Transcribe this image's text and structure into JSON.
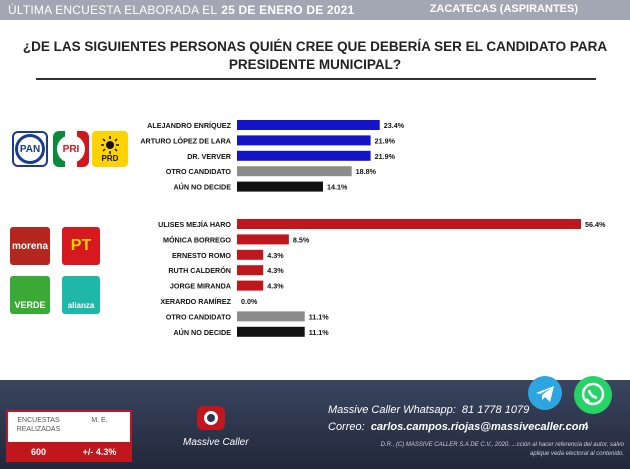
{
  "header": {
    "left_text": "ÚLTIMA ENCUESTA ELABORADA EL",
    "date": "25 DE ENERO DE 2021",
    "right_text": "ZACATECAS (ASPIRANTES)"
  },
  "question": "¿DE LAS SIGUIENTES PERSONAS QUIÉN CREE QUE DEBERÍA SER EL CANDIDATO PARA PRESIDENTE MUNICIPAL?",
  "logos": {
    "pan": "PAN",
    "pri": "PRI",
    "prd": "PRD",
    "morena": "morena",
    "pt": "PT",
    "verde": "VERDE",
    "alianza": "alianza"
  },
  "colors": {
    "blue": "#1414c8",
    "gray": "#8c8c8c",
    "black": "#111111",
    "red": "#c0171e"
  },
  "chart_data": {
    "type": "bar",
    "orientation": "horizontal",
    "groups": [
      {
        "categories": [
          "ALEJANDRO ENRÍQUEZ",
          "ARTURO LÓPEZ DE LARA",
          "DR. VERVER",
          "OTRO CANDIDATO",
          "AÚN NO DECIDE"
        ],
        "values": [
          23.4,
          21.9,
          21.9,
          18.8,
          14.1
        ],
        "labels": [
          "23.4%",
          "21.9%",
          "21.9%",
          "18.8%",
          "14.1%"
        ],
        "colors": [
          "blue",
          "blue",
          "blue",
          "gray",
          "black"
        ]
      },
      {
        "categories": [
          "ULISES MEJÍA HARO",
          "MÓNICA BORREGO",
          "ERNESTO ROMO",
          "RUTH CALDERÓN",
          "JORGE MIRANDA",
          "XERARDO RAMÍREZ",
          "OTRO CANDIDATO",
          "AÚN NO DECIDE"
        ],
        "values": [
          56.4,
          8.5,
          4.3,
          4.3,
          4.3,
          0.0,
          11.1,
          11.1
        ],
        "labels": [
          "56.4%",
          "8.5%",
          "4.3%",
          "4.3%",
          "4.3%",
          "0.0%",
          "11.1%",
          "11.1%"
        ],
        "colors": [
          "red",
          "red",
          "red",
          "red",
          "red",
          "red",
          "gray",
          "black"
        ]
      }
    ]
  },
  "footer": {
    "whatsapp_label": "Massive Caller Whatsapp:",
    "whatsapp_number": "81 1778 1079",
    "mail_label": "Correo:",
    "mail_address": "carlos.campos.riojas@massivecaller.com",
    "legal": "D.R., (C) MASSIVE CALLER S.A DE C.V., 2020. ...cción al hacer referencia del autor, salvo aplique veda electoral al contenido.",
    "table": {
      "col1_header": "ENCUESTAS REALIZADAS",
      "col2_header": "M. E.",
      "col1_value": "600",
      "col2_value": "+/- 4.3%"
    },
    "brand": "Massive Caller",
    "page": "4"
  }
}
